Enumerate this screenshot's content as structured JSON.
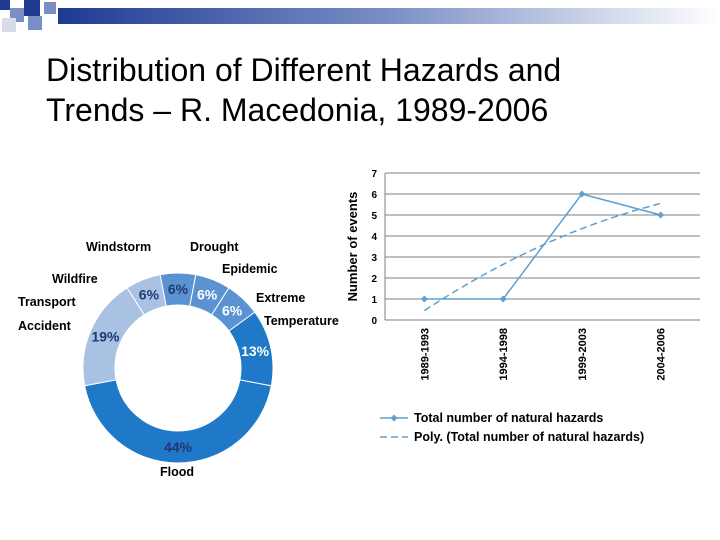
{
  "slide": {
    "title": "Distribution of Different Hazards and\nTrends – R. Macedonia, 1989-2006"
  },
  "colors": {
    "banner_dark": "#1f3a93",
    "banner_mid": "#7a8fc6",
    "banner_light": "#d8dbe8",
    "donut_light": "#a9c1e3",
    "donut_mid": "#5b93d2",
    "donut_dark": "#1f78c8",
    "line": "#5fa0cf",
    "gridline": "#7f7f7f"
  },
  "chart_data": [
    {
      "type": "pie",
      "variant": "donut",
      "slices": [
        {
          "label": "Flood",
          "value": 44,
          "value_label": "44%"
        },
        {
          "label": "Transport Accident",
          "value": 19,
          "value_label": "19%"
        },
        {
          "label": "Wildfire",
          "value": 6,
          "value_label": "6%"
        },
        {
          "label": "Windstorm",
          "value": 6,
          "value_label": "6%"
        },
        {
          "label": "Drought",
          "value": 6,
          "value_label": "6%"
        },
        {
          "label": "Epidemic",
          "value": 6,
          "value_label": "6%"
        },
        {
          "label": "Extreme Temperature",
          "value": 13,
          "value_label": "13%"
        }
      ]
    },
    {
      "type": "line",
      "categories": [
        "1989-1993",
        "1994-1998",
        "1999-2003",
        "2004-2006"
      ],
      "ylabel": "Number of events",
      "ylim": [
        0,
        7
      ],
      "yticks": [
        0,
        1,
        2,
        3,
        4,
        5,
        6,
        7
      ],
      "grid": true,
      "legend_position": "bottom",
      "series": [
        {
          "name": "Total number of natural hazards",
          "values": [
            1,
            1,
            6,
            5
          ],
          "style": "solid-with-markers"
        }
      ],
      "trendline": {
        "name": "Poly. (Total number of natural hazards)",
        "fit": "polynomial",
        "style": "dashed"
      }
    }
  ]
}
